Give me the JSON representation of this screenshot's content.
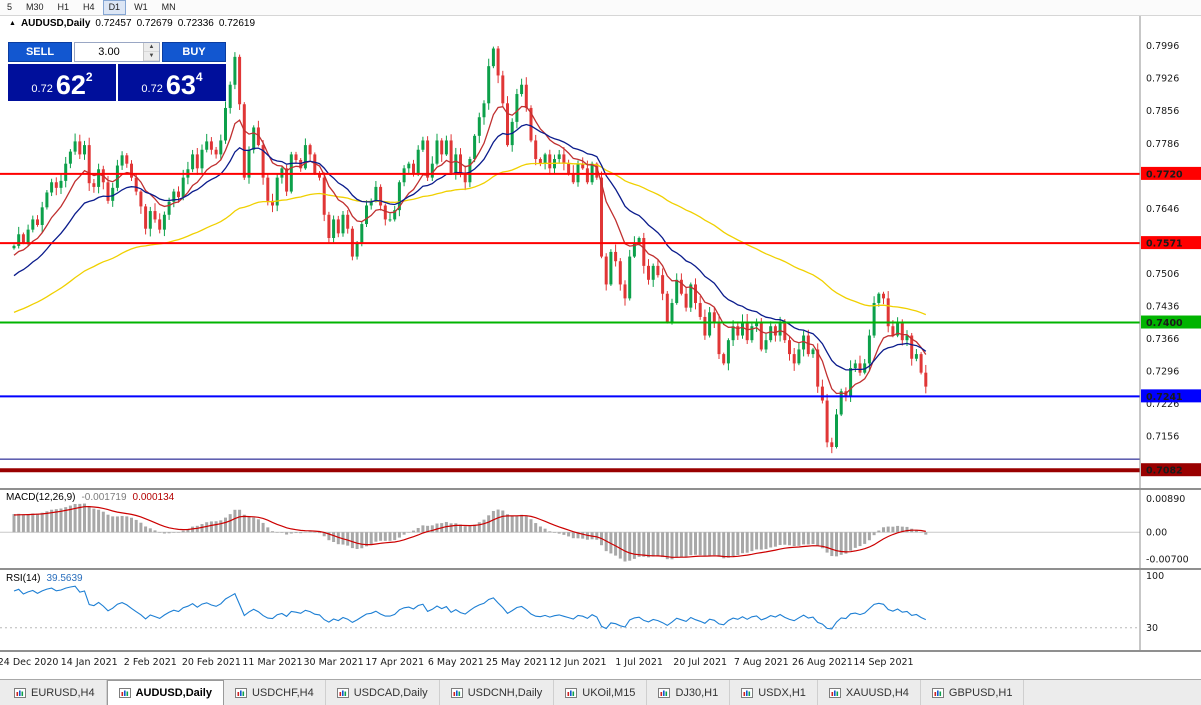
{
  "toolbar": {
    "timeframes": [
      "5",
      "M30",
      "H1",
      "H4",
      "D1",
      "W1",
      "MN"
    ],
    "active": "D1"
  },
  "icons": {
    "symbol_arrow": "▲",
    "spin_up": "▲",
    "spin_down": "▼"
  },
  "chart_header": {
    "symbol": "AUDUSD,Daily",
    "open": "0.72457",
    "high": "0.72679",
    "low": "0.72336",
    "close": "0.72619"
  },
  "trade_panel": {
    "sell_label": "SELL",
    "buy_label": "BUY",
    "volume": "3.00",
    "sell_price": {
      "small": "0.72",
      "big": "62",
      "sup": "2"
    },
    "buy_price": {
      "small": "0.72",
      "big": "63",
      "sup": "4"
    }
  },
  "chart_data": {
    "type": "candlestick",
    "symbol": "AUDUSD",
    "timeframe": "Daily",
    "up_color": "#0ca04a",
    "down_color": "#e03636",
    "y_axis": {
      "max": 0.7996,
      "step": 0.007,
      "ticks": 14
    },
    "x_axis_labels": [
      "24 Dec 2020",
      "14 Jan 2021",
      "2 Feb 2021",
      "20 Feb 2021",
      "11 Mar 2021",
      "30 Mar 2021",
      "17 Apr 2021",
      "6 May 2021",
      "25 May 2021",
      "12 Jun 2021",
      "1 Jul 2021",
      "20 Jul 2021",
      "7 Aug 2021",
      "26 Aug 2021",
      "14 Sep 2021"
    ],
    "h_lines": [
      {
        "price": 0.772,
        "color": "#ff0000",
        "width": 2,
        "label": "0.7720"
      },
      {
        "price": 0.7571,
        "color": "#ff0000",
        "width": 2,
        "label": "0.7571"
      },
      {
        "price": 0.74,
        "color": "#00b400",
        "width": 2,
        "label": "0.7400"
      },
      {
        "price": 0.7241,
        "color": "#0000ff",
        "width": 2,
        "label": "0.7241"
      },
      {
        "price": 0.7106,
        "color": "#000080",
        "width": 1,
        "label": null
      },
      {
        "price": 0.7082,
        "color": "#990000",
        "width": 4,
        "label": "0.7082"
      }
    ],
    "ma_lines": [
      {
        "name": "ma-slow",
        "period": 75,
        "color": "#f0d000"
      },
      {
        "name": "ma-fast",
        "period": 10,
        "color": "#c03030"
      },
      {
        "name": "ma-medium",
        "period": 22,
        "color": "#0b1c8c"
      }
    ],
    "pre_closes": [
      0.736,
      0.7385,
      0.74,
      0.742,
      0.7408,
      0.744,
      0.7462,
      0.748,
      0.747,
      0.7502,
      0.752,
      0.7512,
      0.7535,
      0.755,
      0.7542,
      0.756,
      0.7578,
      0.757,
      0.7552,
      0.756
    ],
    "closes": [
      0.7565,
      0.759,
      0.7572,
      0.76,
      0.7622,
      0.761,
      0.7648,
      0.768,
      0.7702,
      0.769,
      0.7705,
      0.7742,
      0.7768,
      0.779,
      0.7762,
      0.7782,
      0.77,
      0.7692,
      0.773,
      0.7702,
      0.7662,
      0.769,
      0.7738,
      0.776,
      0.7742,
      0.7712,
      0.7682,
      0.765,
      0.7602,
      0.764,
      0.7622,
      0.76,
      0.7632,
      0.766,
      0.7682,
      0.767,
      0.7712,
      0.773,
      0.7762,
      0.7732,
      0.7772,
      0.779,
      0.7772,
      0.7762,
      0.7792,
      0.7862,
      0.7912,
      0.7972,
      0.787,
      0.7712,
      0.7772,
      0.782,
      0.7782,
      0.7712,
      0.7662,
      0.7652,
      0.7712,
      0.7732,
      0.7682,
      0.7762,
      0.775,
      0.7732,
      0.7782,
      0.7762,
      0.7722,
      0.7712,
      0.7632,
      0.7582,
      0.7622,
      0.7592,
      0.7632,
      0.7602,
      0.7542,
      0.7572,
      0.7612,
      0.7652,
      0.7662,
      0.7692,
      0.7652,
      0.7622,
      0.7622,
      0.7642,
      0.7702,
      0.7732,
      0.7742,
      0.7722,
      0.7772,
      0.7792,
      0.7712,
      0.7742,
      0.7792,
      0.7762,
      0.7792,
      0.7722,
      0.7762,
      0.7722,
      0.7702,
      0.7752,
      0.7802,
      0.7842,
      0.7872,
      0.7952,
      0.799,
      0.7932,
      0.7872,
      0.7782,
      0.7832,
      0.7892,
      0.7912,
      0.7862,
      0.7792,
      0.7752,
      0.7742,
      0.7762,
      0.7732,
      0.7752,
      0.7762,
      0.7742,
      0.7722,
      0.7702,
      0.7742,
      0.7732,
      0.7702,
      0.7742,
      0.7712,
      0.7542,
      0.7482,
      0.7552,
      0.7532,
      0.7482,
      0.7452,
      0.7542,
      0.7572,
      0.7582,
      0.7522,
      0.7492,
      0.7522,
      0.7502,
      0.7462,
      0.7402,
      0.7442,
      0.7492,
      0.7462,
      0.7432,
      0.7482,
      0.7442,
      0.7412,
      0.7372,
      0.7422,
      0.7402,
      0.7332,
      0.7312,
      0.7362,
      0.7392,
      0.7372,
      0.7402,
      0.7362,
      0.7392,
      0.7402,
      0.7342,
      0.7362,
      0.7392,
      0.7372,
      0.7402,
      0.7362,
      0.7332,
      0.7312,
      0.7342,
      0.7372,
      0.7332,
      0.7342,
      0.7262,
      0.7232,
      0.7142,
      0.7132,
      0.7202,
      0.7252,
      0.7242,
      0.7302,
      0.7312,
      0.7292,
      0.7312,
      0.7372,
      0.7442,
      0.7462,
      0.7452,
      0.7392,
      0.7372,
      0.7402,
      0.7362,
      0.7372,
      0.7322,
      0.7332,
      0.7292,
      0.7262
    ],
    "macd": {
      "label": "MACD(12,26,9)",
      "value_main": "-0.001719",
      "value_signal": "0.000134",
      "fast": 12,
      "slow": 26,
      "signal": 9,
      "axis_labels": [
        "0.00890",
        "0.00",
        "-0.00700"
      ],
      "axis_values": [
        0.0089,
        0,
        -0.007
      ],
      "hist_color": "#a8a8a8",
      "signal_color": "#cc0000"
    },
    "rsi": {
      "label": "RSI(14)",
      "value": "39.5639",
      "period": 14,
      "axis_labels": [
        "100",
        "30"
      ],
      "axis_values": [
        100,
        30
      ],
      "line_color": "#1d7fd4",
      "level": 30
    }
  },
  "tabs": {
    "active_index": 1,
    "items": [
      "EURUSD,H4",
      "AUDUSD,Daily",
      "USDCHF,H4",
      "USDCAD,Daily",
      "USDCNH,Daily",
      "UKOil,M15",
      "DJ30,H1",
      "USDX,H1",
      "XAUUSD,H4",
      "GBPUSD,H1"
    ]
  }
}
